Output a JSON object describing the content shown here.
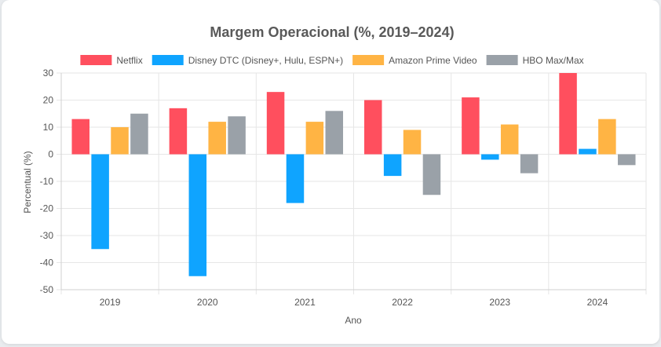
{
  "chart_data": {
    "type": "bar",
    "title": "Margem Operacional (%, 2019–2024)",
    "xlabel": "Ano",
    "ylabel": "Percentual (%)",
    "categories": [
      "2019",
      "2020",
      "2021",
      "2022",
      "2023",
      "2024"
    ],
    "ylim": [
      -50,
      30
    ],
    "yticks": [
      30,
      20,
      10,
      0,
      -10,
      -20,
      -30,
      -40,
      -50
    ],
    "grid": true,
    "legend_position": "top",
    "series": [
      {
        "name": "Netflix",
        "color": "#ff4f5e",
        "values": [
          13,
          17,
          23,
          20,
          21,
          30
        ]
      },
      {
        "name": "Disney DTC (Disney+, Hulu, ESPN+)",
        "color": "#0fa4ff",
        "values": [
          -35,
          -45,
          -18,
          -8,
          -2,
          2
        ]
      },
      {
        "name": "Amazon Prime Video",
        "color": "#ffb444",
        "values": [
          10,
          12,
          12,
          9,
          11,
          13
        ]
      },
      {
        "name": "HBO Max/Max",
        "color": "#9aa1a8",
        "values": [
          15,
          14,
          16,
          -15,
          -7,
          -4
        ]
      }
    ]
  }
}
